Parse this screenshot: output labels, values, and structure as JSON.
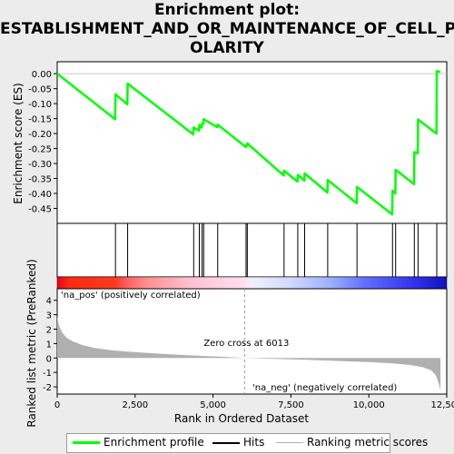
{
  "chart_data": {
    "type": "line",
    "title": "Enrichment plot: ESTABLISHMENT_AND_OR_MAINTENANCE_OF_CELL_POLARITY",
    "title_lines": [
      "Enrichment plot:",
      "ESTABLISHMENT_AND_OR_MAINTENANCE_OF_CELL_P",
      "OLARITY"
    ],
    "xlabel": "Rank in Ordered Dataset",
    "es_ylabel": "Enrichment score (ES)",
    "metric_ylabel": "Ranked list metric (PreRanked)",
    "xlim": [
      0,
      12500
    ],
    "es_ylim": [
      -0.5,
      0.04
    ],
    "metric_ylim": [
      -2.5,
      4.8
    ],
    "x_ticks": [
      0,
      2500,
      5000,
      7500,
      10000,
      12500
    ],
    "x_tick_labels": [
      "0",
      "2,500",
      "5,000",
      "7,500",
      "10,000",
      "12,500"
    ],
    "es_ticks": [
      0.0,
      -0.05,
      -0.1,
      -0.15,
      -0.2,
      -0.25,
      -0.3,
      -0.35,
      -0.4,
      -0.45
    ],
    "es_tick_labels": [
      "0.00",
      "-0.05",
      "-0.10",
      "-0.15",
      "-0.20",
      "-0.25",
      "-0.30",
      "-0.35",
      "-0.40",
      "-0.45"
    ],
    "metric_ticks": [
      4,
      3,
      2,
      1,
      0,
      -1,
      -2
    ],
    "metric_tick_labels": [
      "4",
      "3",
      "2",
      "1",
      "0",
      "-1",
      "-2"
    ],
    "hits": [
      1870,
      2260,
      4380,
      4560,
      4650,
      4700,
      5150,
      6060,
      6100,
      7280,
      7720,
      7940,
      8680,
      9620,
      10760,
      10860,
      11460,
      11580,
      12180
    ],
    "es_profile": {
      "x": [
        0,
        1860,
        1870,
        2250,
        2260,
        4370,
        4380,
        4550,
        4560,
        4640,
        4650,
        4690,
        4700,
        5140,
        5150,
        6050,
        6060,
        6090,
        6100,
        7270,
        7280,
        7710,
        7720,
        7930,
        7940,
        8670,
        8680,
        9610,
        9620,
        10750,
        10760,
        10850,
        10860,
        11450,
        11460,
        11570,
        11580,
        12170,
        12180,
        12300
      ],
      "y": [
        0.0,
        -0.152,
        -0.069,
        -0.102,
        -0.033,
        -0.203,
        -0.18,
        -0.19,
        -0.171,
        -0.18,
        -0.166,
        -0.167,
        -0.152,
        -0.179,
        -0.17,
        -0.245,
        -0.238,
        -0.241,
        -0.233,
        -0.34,
        -0.324,
        -0.36,
        -0.338,
        -0.357,
        -0.333,
        -0.397,
        -0.355,
        -0.433,
        -0.378,
        -0.47,
        -0.391,
        -0.4,
        -0.321,
        -0.369,
        -0.262,
        -0.266,
        -0.153,
        -0.2,
        0.009,
        0.006
      ]
    },
    "metric_profile": {
      "x": [
        0,
        50,
        150,
        300,
        500,
        800,
        1200,
        1800,
        2500,
        3500,
        4500,
        5500,
        6013,
        7000,
        8000,
        9000,
        10000,
        10800,
        11300,
        11700,
        12000,
        12150,
        12250,
        12300
      ],
      "y": [
        2.9,
        2.3,
        1.8,
        1.4,
        1.15,
        0.9,
        0.7,
        0.52,
        0.4,
        0.27,
        0.16,
        0.06,
        0.0,
        -0.06,
        -0.13,
        -0.2,
        -0.28,
        -0.37,
        -0.48,
        -0.62,
        -0.85,
        -1.2,
        -1.8,
        -2.25
      ]
    },
    "zero_cross_label": "Zero cross at 6013",
    "zero_cross": 6013,
    "pos_label": "'na_pos' (positively correlated)",
    "neg_label": "'na_neg' (negatively correlated)",
    "colors": {
      "es_line": "#00ff00",
      "hit": "#000000",
      "metric_fill": "#b0b0b0",
      "pos_text": "#ff0000",
      "neg_text": "#0000cc",
      "zero_line": "#999999"
    },
    "legend": [
      {
        "label": "Enrichment profile",
        "style": "green-line"
      },
      {
        "label": "Hits",
        "style": "black-line"
      },
      {
        "label": "Ranking metric scores",
        "style": "gray-line"
      }
    ]
  }
}
